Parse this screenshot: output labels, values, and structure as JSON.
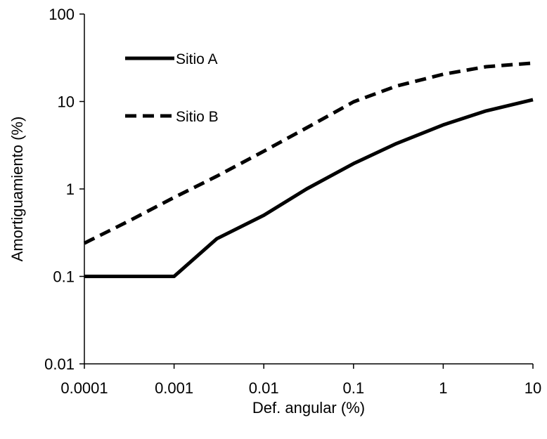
{
  "chart_data": {
    "type": "line",
    "xlabel": "Def. angular (%)",
    "ylabel": "Amortiguamiento (%)",
    "x_scale": "log",
    "y_scale": "log",
    "xlim": [
      0.0001,
      10
    ],
    "ylim": [
      0.01,
      100
    ],
    "x_ticks": [
      0.0001,
      0.001,
      0.01,
      0.1,
      1,
      10
    ],
    "x_tick_labels": [
      "0.0001",
      "0.001",
      "0.01",
      "0.1",
      "1",
      "10"
    ],
    "y_ticks": [
      0.01,
      0.1,
      1,
      10,
      100
    ],
    "y_tick_labels": [
      "0.01",
      "0.1",
      "1",
      "10",
      "100"
    ],
    "grid": false,
    "legend_position": "top-left",
    "series": [
      {
        "name": "Sitio A",
        "line_style": "solid",
        "color": "#000000",
        "x": [
          0.0001,
          0.001,
          0.003,
          0.01,
          0.03,
          0.1,
          0.3,
          1,
          3,
          10
        ],
        "y": [
          0.1,
          0.1,
          0.27,
          0.5,
          1.0,
          1.95,
          3.3,
          5.4,
          7.8,
          10.5
        ]
      },
      {
        "name": "Sitio B",
        "line_style": "dashed",
        "color": "#000000",
        "x": [
          0.0001,
          0.0003,
          0.001,
          0.003,
          0.01,
          0.03,
          0.1,
          0.3,
          1,
          3,
          10
        ],
        "y": [
          0.24,
          0.42,
          0.8,
          1.4,
          2.7,
          5.0,
          9.9,
          15.0,
          20.5,
          25.0,
          27.5
        ]
      }
    ]
  }
}
